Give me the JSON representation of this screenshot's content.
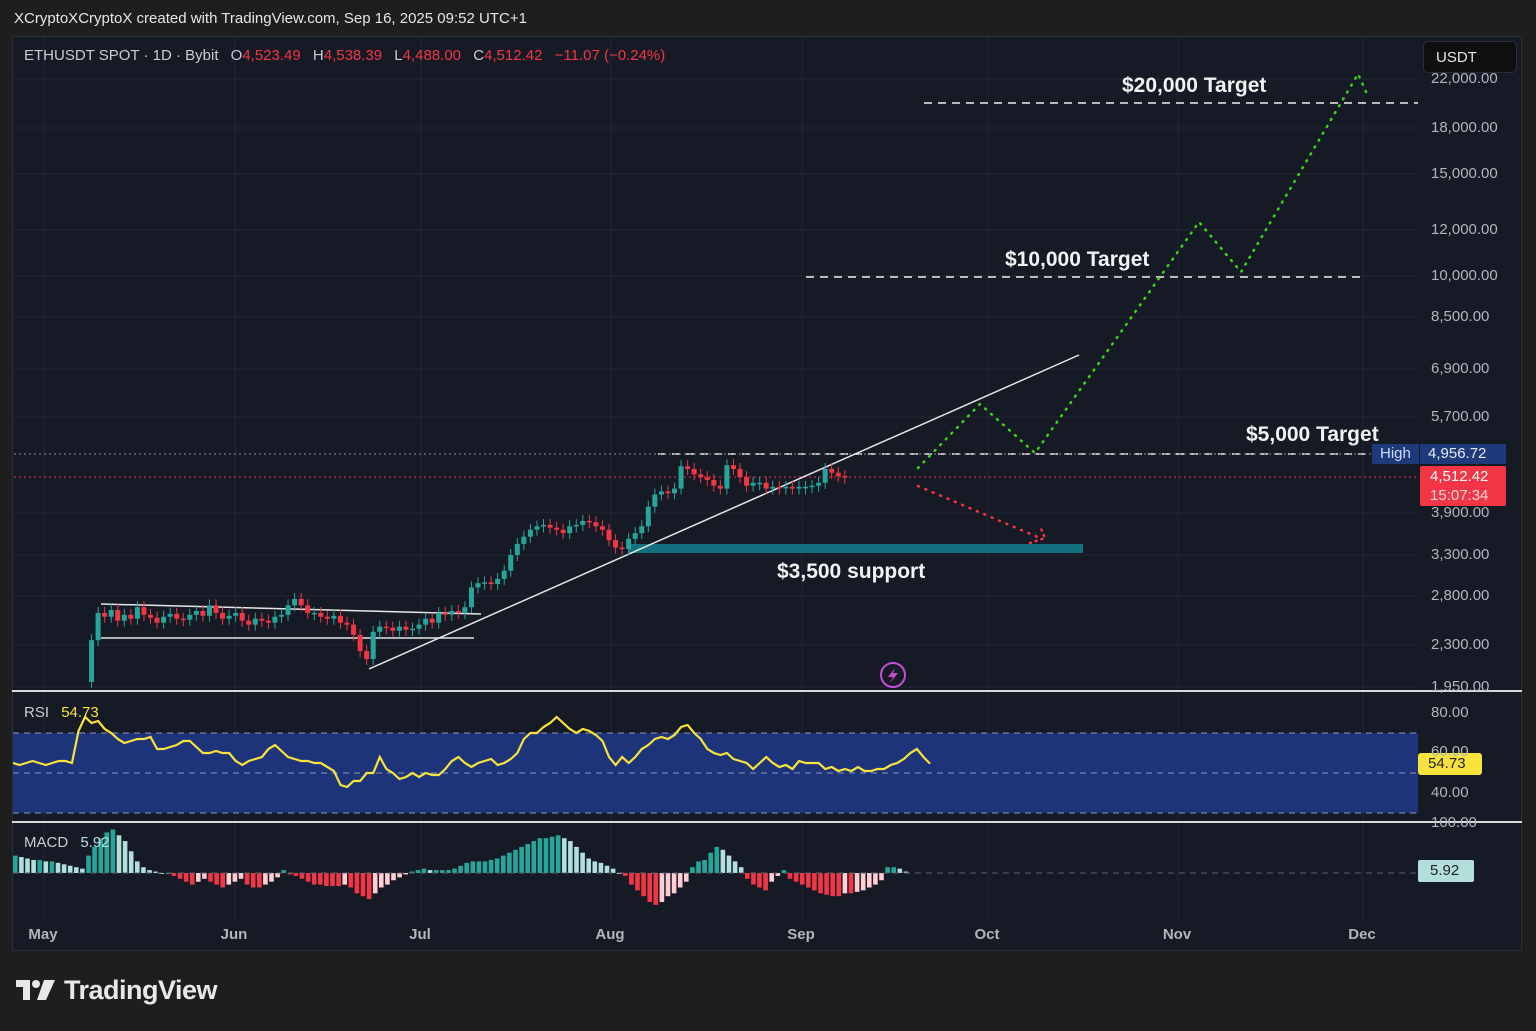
{
  "header": {
    "attribution": "XCryptoXCryptoX created with TradingView.com, Sep 16, 2025 09:52 UTC+1"
  },
  "legend": {
    "symbol": "ETHUSDT SPOT · 1D · Bybit",
    "open_label": "O",
    "open": "4,523.49",
    "high_label": "H",
    "high": "4,538.39",
    "low_label": "L",
    "low": "4,488.00",
    "close_label": "C",
    "close": "4,512.42",
    "change": "−11.07 (−0.24%)"
  },
  "currency_button": "USDT",
  "price_axis": {
    "ticks": [
      "22,000.00",
      "18,000.00",
      "15,000.00",
      "12,000.00",
      "10,000.00",
      "8,500.00",
      "6,900.00",
      "5,700.00",
      "3,900.00",
      "3,300.00",
      "2,800.00",
      "2,300.00",
      "1,950.00"
    ],
    "high_tag": {
      "label": "High",
      "value": "4,956.72"
    },
    "last_tag": {
      "value": "4,512.42",
      "countdown": "15:07:34"
    }
  },
  "rsi": {
    "label": "RSI",
    "value": "54.73",
    "ticks": [
      "80.00",
      "60.00",
      "40.00"
    ],
    "tag": "54.73"
  },
  "macd": {
    "label": "MACD",
    "value": "5.92",
    "ticks": [
      "100.00"
    ],
    "tag": "5.92"
  },
  "time_axis": [
    "May",
    "Jun",
    "Jul",
    "Aug",
    "Sep",
    "Oct",
    "Nov",
    "Dec"
  ],
  "annotations": {
    "target_20000": "$20,000 Target",
    "target_10000": "$10,000 Target",
    "target_5000": "$5,000 Target",
    "support_3500": "$3,500 support"
  },
  "footer": {
    "brand": "TradingView"
  },
  "colors": {
    "up": "#26a69a",
    "down": "#f23645",
    "rsi_line": "#f7e33c",
    "rsi_band": "#1e3a8a",
    "bullish_path": "#3bd41a",
    "bearish_path": "#f23645",
    "support_zone": "#13707f",
    "high_tag": "#1e3a7a"
  },
  "chart_data": {
    "type": "candlestick",
    "title": "ETHUSDT SPOT · 1D · Bybit",
    "scale": "log",
    "ylim": [
      1950,
      22000
    ],
    "x_labels": [
      "May",
      "Jun",
      "Jul",
      "Aug",
      "Sep",
      "Oct",
      "Nov",
      "Dec"
    ],
    "last_price": 4512.42,
    "period_high": 4956.72,
    "ohlc_last": {
      "open": 4523.49,
      "high": 4538.39,
      "low": 4488.0,
      "close": 4512.42,
      "change": -11.07,
      "change_pct": -0.24
    },
    "price_path_approx": [
      {
        "date": "2025-05-08",
        "close": 2200
      },
      {
        "date": "2025-05-10",
        "close": 2600
      },
      {
        "date": "2025-05-20",
        "close": 2550
      },
      {
        "date": "2025-06-01",
        "close": 2500
      },
      {
        "date": "2025-06-10",
        "close": 2750
      },
      {
        "date": "2025-06-22",
        "close": 2250
      },
      {
        "date": "2025-07-01",
        "close": 2450
      },
      {
        "date": "2025-07-10",
        "close": 2950
      },
      {
        "date": "2025-07-20",
        "close": 3700
      },
      {
        "date": "2025-08-02",
        "close": 3450
      },
      {
        "date": "2025-08-13",
        "close": 4700
      },
      {
        "date": "2025-08-22",
        "close": 4800
      },
      {
        "date": "2025-09-01",
        "close": 4350
      },
      {
        "date": "2025-09-13",
        "close": 4650
      },
      {
        "date": "2025-09-16",
        "close": 4512.42
      }
    ],
    "levels": [
      {
        "label": "$20,000 Target",
        "price": 20000
      },
      {
        "label": "$10,000 Target",
        "price": 10000
      },
      {
        "label": "$5,000 Target",
        "price": 4956.72
      },
      {
        "label": "$3,500 support",
        "price": 3500
      }
    ],
    "projections": [
      {
        "name": "bullish",
        "points": [
          [
            "2025-09-18",
            4500
          ],
          [
            "2025-09-28",
            5900
          ],
          [
            "2025-10-10",
            4950
          ],
          [
            "2025-10-26",
            12000
          ],
          [
            "2025-11-12",
            10000
          ],
          [
            "2025-11-30",
            22000
          ]
        ]
      },
      {
        "name": "bearish",
        "points": [
          [
            "2025-09-18",
            4500
          ],
          [
            "2025-10-13",
            3500
          ]
        ]
      }
    ],
    "indicators": {
      "rsi": {
        "value": 54.73,
        "upper": 70,
        "mid": 50,
        "lower": 30,
        "ticks": [
          80,
          60,
          40
        ]
      },
      "macd": {
        "value": 5.92
      }
    }
  }
}
